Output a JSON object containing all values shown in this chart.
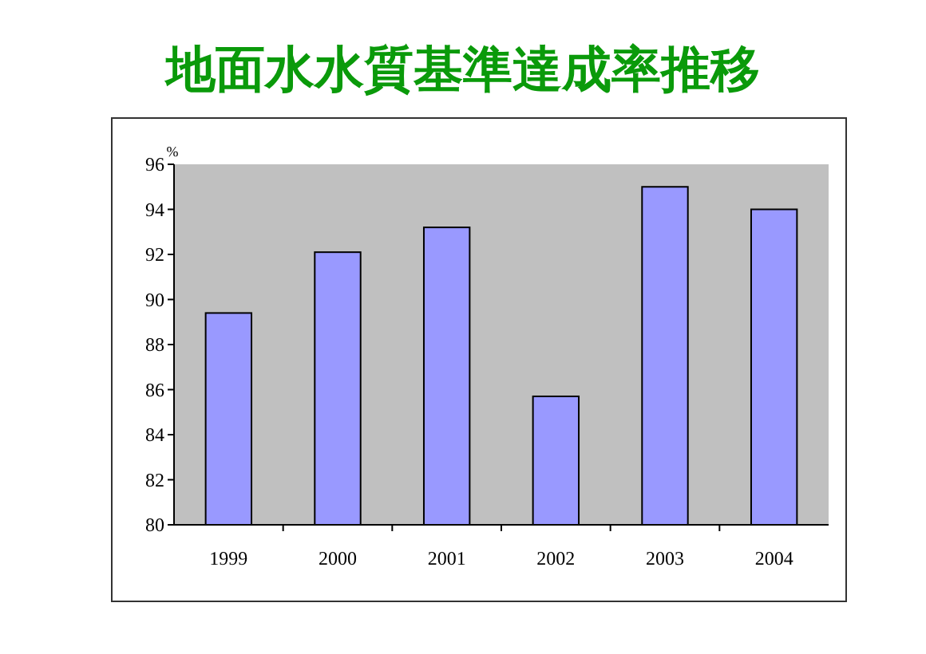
{
  "chart_data": {
    "type": "bar",
    "title": "地面水水質基準達成率推移",
    "ylabel": "%",
    "categories": [
      "1999",
      "2000",
      "2001",
      "2002",
      "2003",
      "2004"
    ],
    "values": [
      89.4,
      92.1,
      93.2,
      85.7,
      95.0,
      94.0
    ],
    "color": "#9999ff",
    "ylim": [
      80,
      96
    ],
    "yticks": [
      80,
      82,
      84,
      86,
      88,
      90,
      92,
      94,
      96
    ]
  }
}
